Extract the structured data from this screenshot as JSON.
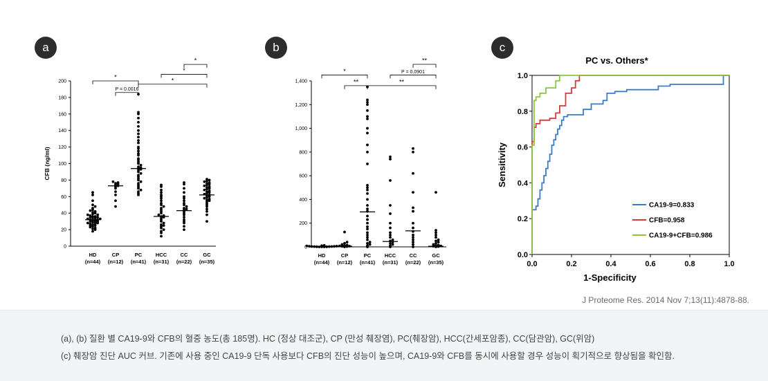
{
  "panels": {
    "a": {
      "label": "a"
    },
    "b": {
      "label": "b"
    },
    "c": {
      "label": "c"
    }
  },
  "citation": "J Proteome Res. 2014 Nov 7;13(11):4878-88.",
  "caption": {
    "line1": "(a), (b) 질환 별 CA19-9와 CFB의 혈중 농도(총 185명). HC (정상 대조군), CP (만성 췌장염), PC(췌장암), HCC(간세포암종), CC(담관암), GC(위암)",
    "line2": "(c) 췌장암 진단 AUC 커브. 기존에 사용 중인 CA19-9 단독 사용보다 CFB의 진단 성능이 높으며, CA19-9와 CFB를 동시에 사용할 경우 성능이 획기적으로 향상됨을 확인함."
  },
  "chart_data": [
    {
      "type": "scatter",
      "panel": "a",
      "title": "",
      "xlabel": "",
      "ylabel": "CFB (ng/ml)",
      "ylim": [
        0,
        200
      ],
      "yticks": [
        "0",
        "20",
        "40",
        "60",
        "80",
        "100",
        "120",
        "140",
        "160",
        "180",
        "200"
      ],
      "categories": [
        "HD",
        "CP",
        "PC",
        "HCC",
        "CC",
        "GC"
      ],
      "category_n": [
        "(n=44)",
        "(n=12)",
        "(n=41)",
        "(n=31)",
        "(n=22)",
        "(n=35)"
      ],
      "medians": [
        32,
        73,
        94,
        36,
        43,
        62
      ],
      "points": [
        [
          18,
          20,
          21,
          22,
          23,
          24,
          25,
          25,
          26,
          27,
          27,
          28,
          28,
          29,
          29,
          30,
          30,
          31,
          31,
          32,
          32,
          33,
          33,
          34,
          34,
          35,
          35,
          36,
          36,
          37,
          38,
          38,
          39,
          40,
          41,
          42,
          43,
          44,
          46,
          48,
          50,
          55,
          62,
          65
        ],
        [
          48,
          55,
          62,
          66,
          70,
          72,
          73,
          74,
          75,
          76,
          77,
          78
        ],
        [
          62,
          64,
          66,
          68,
          70,
          72,
          74,
          76,
          78,
          80,
          82,
          84,
          86,
          88,
          90,
          92,
          93,
          94,
          95,
          96,
          98,
          100,
          102,
          104,
          106,
          110,
          112,
          115,
          118,
          120,
          125,
          128,
          132,
          136,
          140,
          145,
          150,
          155,
          160,
          162,
          184
        ],
        [
          12,
          16,
          18,
          20,
          22,
          24,
          25,
          26,
          28,
          30,
          32,
          34,
          35,
          36,
          37,
          38,
          40,
          42,
          44,
          46,
          48,
          50,
          52,
          55,
          58,
          60,
          62,
          65,
          68,
          72,
          74
        ],
        [
          20,
          24,
          28,
          30,
          32,
          35,
          38,
          40,
          42,
          44,
          45,
          46,
          48,
          50,
          52,
          55,
          58,
          60,
          65,
          70,
          75,
          77
        ],
        [
          30,
          38,
          42,
          45,
          48,
          50,
          52,
          54,
          55,
          56,
          57,
          58,
          59,
          60,
          61,
          62,
          63,
          64,
          65,
          66,
          67,
          68,
          69,
          70,
          71,
          72,
          73,
          74,
          75,
          76,
          77,
          78,
          79,
          80,
          81
        ]
      ],
      "annotations": [
        {
          "from": 0,
          "to": 2,
          "text": "*",
          "level": 200
        },
        {
          "from": 1,
          "to": 2,
          "text": "P = 0.0016",
          "level": 186
        },
        {
          "from": 2,
          "to": 5,
          "text": "*",
          "level": 196
        },
        {
          "from": 3,
          "to": 5,
          "text": "*",
          "level": 208
        },
        {
          "from": 4,
          "to": 5,
          "text": "*",
          "level": 220
        }
      ]
    },
    {
      "type": "scatter",
      "panel": "b",
      "title": "",
      "xlabel": "",
      "ylabel": "",
      "ylim": [
        0,
        1400
      ],
      "yticks": [
        "0",
        "200",
        "400",
        "600",
        "800",
        "1,000",
        "1,200",
        "1,400"
      ],
      "categories": [
        "HD",
        "CP",
        "PC",
        "HCC",
        "CC",
        "GC"
      ],
      "category_n": [
        "(n=44)",
        "(n=12)",
        "(n=41)",
        "(n=31)",
        "(n=22)",
        "(n=35)"
      ],
      "medians": [
        2,
        5,
        295,
        45,
        135,
        5
      ],
      "points": [
        [
          0,
          0,
          0,
          1,
          1,
          2,
          2,
          3,
          3,
          4,
          5,
          6,
          8,
          10,
          12
        ],
        [
          0,
          2,
          4,
          6,
          8,
          10,
          15,
          20,
          30,
          40,
          125
        ],
        [
          0,
          10,
          20,
          30,
          40,
          60,
          80,
          100,
          120,
          150,
          170,
          200,
          230,
          260,
          300,
          320,
          350,
          400,
          450,
          480,
          500,
          520,
          700,
          800,
          860,
          960,
          1000,
          1080,
          1100,
          1150,
          1200,
          1220,
          1240,
          1350
        ],
        [
          0,
          10,
          20,
          30,
          40,
          50,
          60,
          80,
          100,
          120,
          160,
          200,
          280,
          350,
          560,
          740,
          760
        ],
        [
          0,
          20,
          40,
          60,
          80,
          100,
          130,
          160,
          200,
          300,
          330,
          460,
          620,
          800,
          830
        ],
        [
          0,
          2,
          5,
          8,
          10,
          15,
          20,
          30,
          40,
          50,
          60,
          80,
          100,
          120,
          140,
          460
        ]
      ],
      "annotations": [
        {
          "from": 0,
          "to": 2,
          "text": "*",
          "level": 1450
        },
        {
          "from": 1,
          "to": 2,
          "text": "**",
          "level": 1360
        },
        {
          "from": 2,
          "to": 5,
          "text": "**",
          "level": 1360
        },
        {
          "from": 3,
          "to": 5,
          "text": "P = 0.0901",
          "level": 1450
        },
        {
          "from": 4,
          "to": 5,
          "text": "**",
          "level": 1540
        }
      ]
    },
    {
      "type": "line",
      "panel": "c",
      "title": "PC vs. Others*",
      "xlabel": "1-Specificity",
      "ylabel": "Sensitivity",
      "xlim": [
        0,
        1
      ],
      "ylim": [
        0,
        1
      ],
      "xticks": [
        "0.0",
        "0.2",
        "0.4",
        "0.6",
        "0.8",
        "1.0"
      ],
      "yticks": [
        "0.0",
        "0.2",
        "0.4",
        "0.6",
        "0.8",
        "1.0"
      ],
      "grid": false,
      "legend_position": "bottom-right",
      "colors": {
        "ca199": "#3c7cc4",
        "cfb": "#d43b3b",
        "combo": "#8cc63f"
      },
      "series": [
        {
          "name": "CA19-9=0.833",
          "color_key": "ca199",
          "x": [
            0,
            0,
            0.02,
            0.02,
            0.03,
            0.03,
            0.04,
            0.04,
            0.05,
            0.05,
            0.06,
            0.06,
            0.07,
            0.07,
            0.08,
            0.08,
            0.09,
            0.09,
            0.1,
            0.1,
            0.11,
            0.11,
            0.12,
            0.12,
            0.13,
            0.13,
            0.14,
            0.14,
            0.15,
            0.15,
            0.16,
            0.16,
            0.18,
            0.18,
            0.26,
            0.26,
            0.3,
            0.3,
            0.36,
            0.36,
            0.38,
            0.38,
            0.42,
            0.42,
            0.48,
            0.48,
            0.64,
            0.64,
            0.7,
            0.7,
            0.97,
            0.97,
            1.0
          ],
          "y": [
            0,
            0.25,
            0.25,
            0.27,
            0.27,
            0.31,
            0.31,
            0.36,
            0.36,
            0.4,
            0.4,
            0.44,
            0.44,
            0.48,
            0.48,
            0.52,
            0.52,
            0.56,
            0.56,
            0.61,
            0.61,
            0.64,
            0.64,
            0.67,
            0.67,
            0.7,
            0.7,
            0.72,
            0.72,
            0.75,
            0.75,
            0.77,
            0.77,
            0.78,
            0.78,
            0.81,
            0.81,
            0.84,
            0.84,
            0.86,
            0.86,
            0.9,
            0.9,
            0.91,
            0.91,
            0.92,
            0.92,
            0.94,
            0.94,
            0.95,
            0.95,
            1.0,
            1.0
          ]
        },
        {
          "name": "CFB=0.958",
          "color_key": "cfb",
          "x": [
            0,
            0,
            0.01,
            0.01,
            0.02,
            0.02,
            0.04,
            0.04,
            0.09,
            0.09,
            0.12,
            0.12,
            0.14,
            0.14,
            0.17,
            0.17,
            0.2,
            0.2,
            0.22,
            0.22,
            0.24,
            0.24,
            1.0
          ],
          "y": [
            0,
            0.63,
            0.63,
            0.71,
            0.71,
            0.73,
            0.73,
            0.75,
            0.75,
            0.76,
            0.76,
            0.79,
            0.79,
            0.83,
            0.83,
            0.9,
            0.9,
            0.93,
            0.93,
            0.97,
            0.97,
            1.0,
            1.0
          ],
          "color": "#d43b3b"
        },
        {
          "name": "CA19-9+CFB=0.986",
          "color_key": "combo",
          "x": [
            0,
            0,
            0.01,
            0.01,
            0.02,
            0.02,
            0.04,
            0.04,
            0.07,
            0.07,
            0.12,
            0.12,
            0.14,
            0.14,
            1.0
          ],
          "y": [
            0,
            0.61,
            0.61,
            0.86,
            0.86,
            0.88,
            0.88,
            0.9,
            0.9,
            0.93,
            0.93,
            0.97,
            0.97,
            1.0,
            1.0
          ]
        }
      ]
    }
  ]
}
